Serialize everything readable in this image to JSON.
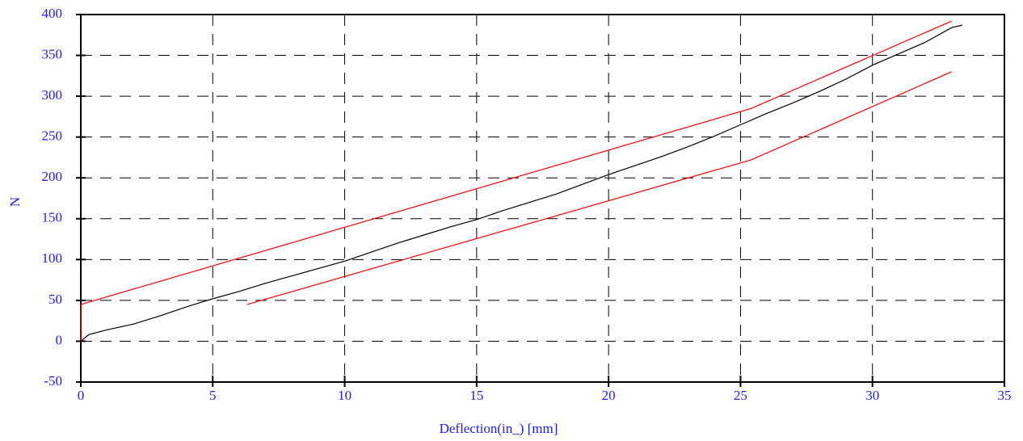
{
  "chart_data": {
    "type": "line",
    "x_label": "Deflection(in_) [mm]",
    "y_label": "N",
    "xlim": [
      0,
      35
    ],
    "xticks": [
      0,
      5,
      10,
      15,
      20,
      25,
      30,
      35
    ],
    "ylim": [
      -50,
      400
    ],
    "yticks": [
      -50,
      0,
      50,
      100,
      150,
      200,
      250,
      300,
      350,
      400
    ],
    "grid": true,
    "series": [
      {
        "color": "#000000",
        "x": [
          0,
          0.3,
          1,
          2,
          3,
          4,
          5,
          6,
          7,
          8,
          9,
          10,
          11,
          12,
          13,
          14,
          15,
          16,
          17,
          18,
          19,
          20,
          21,
          22,
          23,
          24,
          25,
          26,
          27,
          28,
          29,
          30,
          31,
          32,
          33,
          33.4
        ],
        "values": [
          0,
          8,
          14,
          21,
          31,
          42,
          52,
          61,
          71,
          80,
          89,
          98,
          109,
          120,
          130,
          140,
          149,
          160,
          170,
          180,
          192,
          204,
          215,
          226,
          238,
          251,
          265,
          279,
          292,
          306,
          321,
          338,
          352,
          366,
          384,
          387
        ]
      },
      {
        "color": "#ff0000",
        "x": [
          0,
          0,
          25.4,
          33
        ],
        "values": [
          0,
          45,
          285,
          392
        ]
      },
      {
        "color": "#ff0000",
        "x": [
          6.3,
          25.4,
          33
        ],
        "values": [
          45,
          222,
          330
        ]
      }
    ]
  }
}
